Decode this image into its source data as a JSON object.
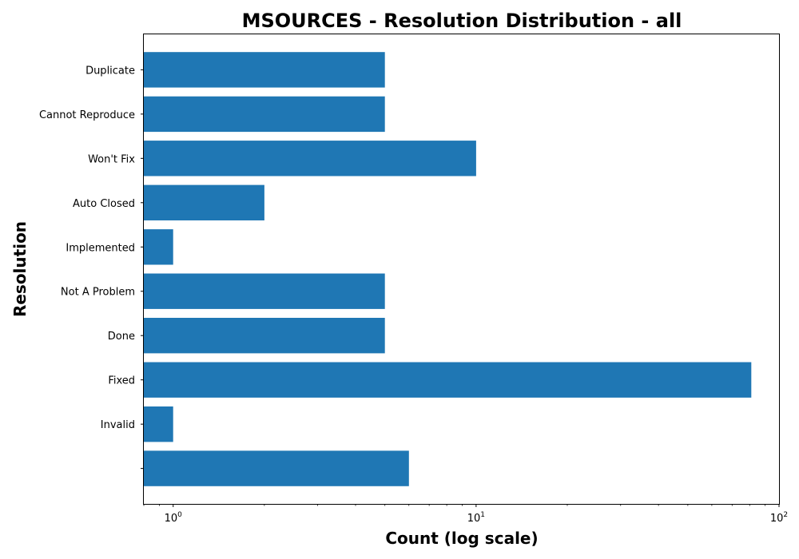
{
  "chart_data": {
    "type": "bar",
    "orientation": "horizontal",
    "title": "MSOURCES - Resolution Distribution - all",
    "xlabel": "Count (log scale)",
    "ylabel": "Resolution",
    "xscale": "log",
    "xlim": [
      0.8,
      100
    ],
    "xticks": [
      {
        "base": "10",
        "exp": "0",
        "value": 1
      },
      {
        "base": "10",
        "exp": "1",
        "value": 10
      },
      {
        "base": "10",
        "exp": "2",
        "value": 100
      }
    ],
    "categories": [
      "Duplicate",
      "Cannot Reproduce",
      "Won't Fix",
      "Auto Closed",
      "Implemented",
      "Not A Problem",
      "Done",
      "Fixed",
      "Invalid",
      ""
    ],
    "values": [
      5,
      5,
      10,
      2,
      1,
      5,
      5,
      81,
      1,
      6
    ],
    "bar_color": "#1f77b4",
    "grid": false
  }
}
